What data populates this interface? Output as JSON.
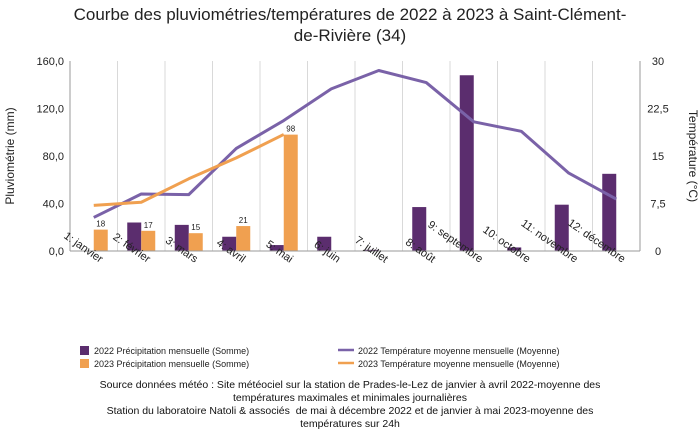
{
  "chart_data": {
    "type": "bar+line",
    "title_line1": "Courbe des pluviométries/températures de 2022 à 2023 à Saint-Clément-",
    "title_line2": "de-Rivière (34)",
    "categories": [
      "1: janvier",
      "2: février",
      "3: mars",
      "4: avril",
      "5: mai",
      "6: juin",
      "7: juillet",
      "8: août",
      "9: septembre",
      "10: octobre",
      "11: novembre",
      "12: décembre"
    ],
    "ylabel_left": "Pluviométrie (mm)",
    "ylabel_right": "Température (°C)",
    "ylim_left": [
      0,
      160
    ],
    "ylim_right": [
      0,
      30
    ],
    "yticks_left": [
      "0,0",
      "40,0",
      "80,0",
      "120,0",
      "160,0"
    ],
    "yticks_right": [
      "0",
      "7,5",
      "15",
      "22,5",
      "30"
    ],
    "grid": "vertical",
    "legend_position": "bottom",
    "bar_series": [
      {
        "name": "2022 Précipitation mensuelle (Somme)",
        "color": "#5b2d6e",
        "values": [
          null,
          24,
          22,
          12,
          5,
          12,
          1,
          37,
          148,
          3,
          39,
          65
        ]
      },
      {
        "name": "2023 Précipitation mensuelle (Somme)",
        "color": "#f0a050",
        "values": [
          18,
          17,
          15,
          21,
          98,
          null,
          null,
          null,
          null,
          null,
          null,
          null
        ],
        "labels": [
          "18",
          "17",
          "15",
          "21",
          "98",
          "",
          "",
          "",
          "",
          "",
          "",
          ""
        ]
      }
    ],
    "line_series": [
      {
        "name": "2022 Température moyenne mensuelle (Moyenne)",
        "color": "#7a62a8",
        "values": [
          5.3,
          9.0,
          8.9,
          16.2,
          20.6,
          25.6,
          28.5,
          26.6,
          20.4,
          18.9,
          12.3,
          8.2
        ]
      },
      {
        "name": "2023 Température moyenne mensuelle (Moyenne)",
        "color": "#f0a050",
        "values": [
          7.2,
          7.7,
          11.4,
          14.7,
          18.4,
          null,
          null,
          null,
          null,
          null,
          null,
          null
        ]
      }
    ]
  },
  "source": {
    "line1": "Source données météo : Site météociel sur la station de Prades-le-Lez de janvier à avril 2022-moyenne des",
    "line2": "températures maximales et minimales journalières",
    "line3": "Station du laboratoire Natoli & associés  de mai à décembre 2022 et de janvier à mai 2023-moyenne des",
    "line4": "températures sur 24h"
  }
}
